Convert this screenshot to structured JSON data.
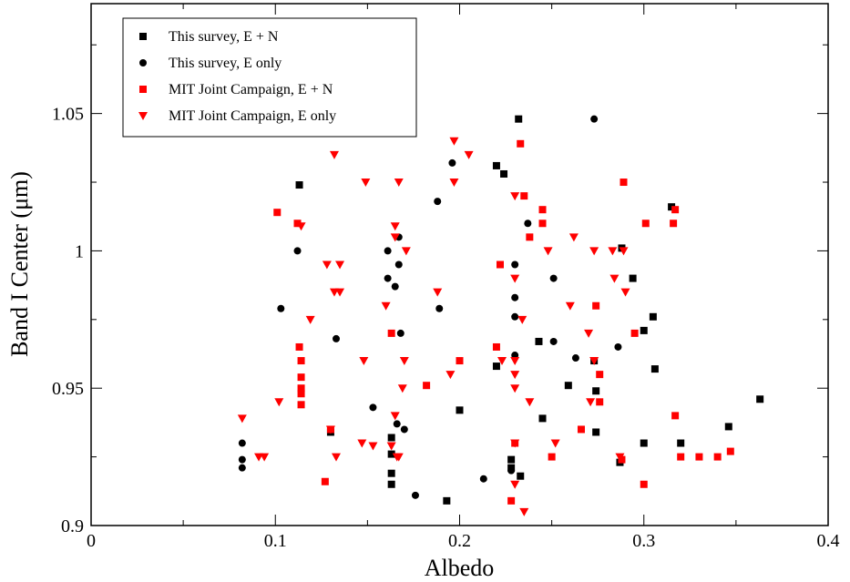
{
  "chart_data": {
    "type": "scatter",
    "xlabel": "Albedo",
    "ylabel": "Band I Center (μm)",
    "xlim": [
      0,
      0.4
    ],
    "ylim": [
      0.9,
      1.09
    ],
    "x_ticks": [
      "0",
      "0.1",
      "0.2",
      "0.3",
      "0.4"
    ],
    "y_ticks": [
      "0.9",
      "0.95",
      "1",
      "1.05"
    ],
    "grid": false,
    "legend_position": "top-left",
    "series": [
      {
        "name": "This survey, E + N",
        "color": "#000000",
        "marker": "square",
        "points": [
          [
            0.113,
            1.024
          ],
          [
            0.13,
            0.934
          ],
          [
            0.163,
            0.932
          ],
          [
            0.163,
            0.926
          ],
          [
            0.163,
            0.919
          ],
          [
            0.163,
            0.915
          ],
          [
            0.193,
            0.909
          ],
          [
            0.2,
            0.942
          ],
          [
            0.22,
            1.031
          ],
          [
            0.224,
            1.028
          ],
          [
            0.22,
            0.958
          ],
          [
            0.228,
            0.924
          ],
          [
            0.228,
            0.921
          ],
          [
            0.232,
            1.048
          ],
          [
            0.233,
            0.918
          ],
          [
            0.243,
            0.967
          ],
          [
            0.245,
            0.939
          ],
          [
            0.259,
            0.951
          ],
          [
            0.273,
            0.96
          ],
          [
            0.274,
            0.949
          ],
          [
            0.274,
            0.934
          ],
          [
            0.287,
            0.923
          ],
          [
            0.288,
            1.001
          ],
          [
            0.294,
            0.99
          ],
          [
            0.3,
            0.971
          ],
          [
            0.3,
            0.93
          ],
          [
            0.305,
            0.976
          ],
          [
            0.306,
            0.957
          ],
          [
            0.315,
            1.016
          ],
          [
            0.32,
            0.93
          ],
          [
            0.346,
            0.936
          ],
          [
            0.363,
            0.946
          ]
        ]
      },
      {
        "name": "This survey, E only",
        "color": "#000000",
        "marker": "circle",
        "points": [
          [
            0.082,
            0.93
          ],
          [
            0.082,
            0.924
          ],
          [
            0.082,
            0.921
          ],
          [
            0.103,
            0.979
          ],
          [
            0.112,
            1.0
          ],
          [
            0.133,
            0.968
          ],
          [
            0.153,
            0.943
          ],
          [
            0.161,
            1.0
          ],
          [
            0.161,
            0.99
          ],
          [
            0.165,
            0.987
          ],
          [
            0.166,
            0.937
          ],
          [
            0.167,
            1.005
          ],
          [
            0.167,
            0.995
          ],
          [
            0.168,
            0.97
          ],
          [
            0.17,
            0.935
          ],
          [
            0.176,
            0.911
          ],
          [
            0.188,
            1.018
          ],
          [
            0.189,
            0.979
          ],
          [
            0.196,
            1.032
          ],
          [
            0.213,
            0.917
          ],
          [
            0.228,
            0.92
          ],
          [
            0.23,
            0.995
          ],
          [
            0.23,
            0.983
          ],
          [
            0.23,
            0.976
          ],
          [
            0.23,
            0.962
          ],
          [
            0.237,
            1.01
          ],
          [
            0.251,
            0.99
          ],
          [
            0.251,
            0.967
          ],
          [
            0.263,
            0.961
          ],
          [
            0.273,
            1.048
          ],
          [
            0.286,
            0.965
          ]
        ]
      },
      {
        "name": "MIT Joint Campaign, E + N",
        "color": "#ff0000",
        "marker": "square",
        "points": [
          [
            0.101,
            1.014
          ],
          [
            0.112,
            1.01
          ],
          [
            0.113,
            0.965
          ],
          [
            0.114,
            0.96
          ],
          [
            0.114,
            0.954
          ],
          [
            0.114,
            0.95
          ],
          [
            0.114,
            0.948
          ],
          [
            0.114,
            0.944
          ],
          [
            0.127,
            0.916
          ],
          [
            0.13,
            0.935
          ],
          [
            0.163,
            0.97
          ],
          [
            0.182,
            0.951
          ],
          [
            0.2,
            0.96
          ],
          [
            0.22,
            0.965
          ],
          [
            0.222,
            0.995
          ],
          [
            0.228,
            0.909
          ],
          [
            0.23,
            0.93
          ],
          [
            0.233,
            1.039
          ],
          [
            0.235,
            1.02
          ],
          [
            0.238,
            1.005
          ],
          [
            0.245,
            1.015
          ],
          [
            0.245,
            1.01
          ],
          [
            0.25,
            0.925
          ],
          [
            0.266,
            0.935
          ],
          [
            0.274,
            0.98
          ],
          [
            0.276,
            0.955
          ],
          [
            0.276,
            0.945
          ],
          [
            0.288,
            0.924
          ],
          [
            0.289,
            1.025
          ],
          [
            0.295,
            0.97
          ],
          [
            0.3,
            0.915
          ],
          [
            0.301,
            1.01
          ],
          [
            0.316,
            1.01
          ],
          [
            0.317,
            1.015
          ],
          [
            0.317,
            0.94
          ],
          [
            0.32,
            0.925
          ],
          [
            0.33,
            0.925
          ],
          [
            0.34,
            0.925
          ],
          [
            0.347,
            0.927
          ]
        ]
      },
      {
        "name": "MIT Joint Campaign, E only",
        "color": "#ff0000",
        "marker": "triangle-down",
        "points": [
          [
            0.082,
            0.939
          ],
          [
            0.091,
            0.925
          ],
          [
            0.094,
            0.925
          ],
          [
            0.102,
            0.945
          ],
          [
            0.114,
            1.009
          ],
          [
            0.119,
            0.975
          ],
          [
            0.128,
            0.995
          ],
          [
            0.13,
            0.935
          ],
          [
            0.132,
            1.035
          ],
          [
            0.132,
            0.985
          ],
          [
            0.133,
            0.925
          ],
          [
            0.135,
            0.995
          ],
          [
            0.135,
            0.985
          ],
          [
            0.147,
            0.93
          ],
          [
            0.148,
            0.96
          ],
          [
            0.149,
            1.025
          ],
          [
            0.153,
            0.929
          ],
          [
            0.16,
            0.98
          ],
          [
            0.163,
            0.929
          ],
          [
            0.165,
            1.009
          ],
          [
            0.165,
            1.005
          ],
          [
            0.165,
            0.94
          ],
          [
            0.166,
            0.925
          ],
          [
            0.167,
            1.025
          ],
          [
            0.167,
            0.925
          ],
          [
            0.169,
            0.95
          ],
          [
            0.17,
            0.96
          ],
          [
            0.171,
            1.0
          ],
          [
            0.188,
            0.985
          ],
          [
            0.195,
            0.955
          ],
          [
            0.197,
            1.04
          ],
          [
            0.197,
            1.025
          ],
          [
            0.205,
            1.035
          ],
          [
            0.223,
            0.96
          ],
          [
            0.23,
            1.02
          ],
          [
            0.23,
            0.99
          ],
          [
            0.23,
            0.96
          ],
          [
            0.23,
            0.955
          ],
          [
            0.23,
            0.95
          ],
          [
            0.23,
            0.93
          ],
          [
            0.23,
            0.915
          ],
          [
            0.234,
            0.975
          ],
          [
            0.235,
            0.905
          ],
          [
            0.238,
            0.945
          ],
          [
            0.248,
            1.0
          ],
          [
            0.252,
            0.93
          ],
          [
            0.26,
            0.98
          ],
          [
            0.262,
            1.005
          ],
          [
            0.27,
            0.97
          ],
          [
            0.271,
            0.945
          ],
          [
            0.273,
            0.96
          ],
          [
            0.273,
            1.0
          ],
          [
            0.283,
            1.0
          ],
          [
            0.284,
            0.99
          ],
          [
            0.287,
            0.925
          ],
          [
            0.289,
            1.0
          ],
          [
            0.29,
            0.985
          ]
        ]
      }
    ]
  }
}
